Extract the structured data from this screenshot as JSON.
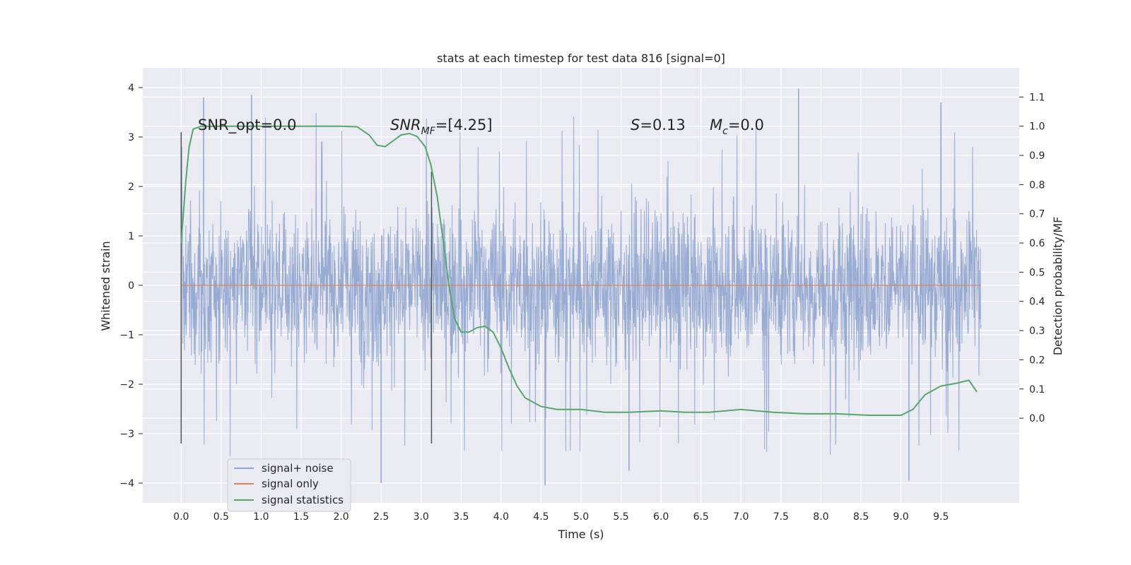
{
  "chart_data": {
    "type": "line",
    "title": "stats at each timestep for test data 816 [signal=0]",
    "xlabel": "Time (s)",
    "ylabel": "Whitened strain",
    "y2label": "Detection probability/MF",
    "xlim": [
      -0.48,
      10.48
    ],
    "ylim": [
      -4.4,
      4.4
    ],
    "y2lim": [
      -0.29,
      1.2
    ],
    "x_ticks": [
      0.0,
      0.5,
      1.0,
      1.5,
      2.0,
      2.5,
      3.0,
      3.5,
      4.0,
      4.5,
      5.0,
      5.5,
      6.0,
      6.5,
      7.0,
      7.5,
      8.0,
      8.5,
      9.0,
      9.5
    ],
    "x_tick_labels": [
      "0.0",
      "0.5",
      "1.0",
      "1.5",
      "2.0",
      "2.5",
      "3.0",
      "3.5",
      "4.0",
      "4.5",
      "5.0",
      "5.5",
      "6.0",
      "6.5",
      "7.0",
      "7.5",
      "8.0",
      "8.5",
      "9.0",
      "9.5"
    ],
    "y_ticks": [
      -4,
      -3,
      -2,
      -1,
      0,
      1,
      2,
      3,
      4
    ],
    "y_tick_labels": [
      "−4",
      "−3",
      "−2",
      "−1",
      "0",
      "1",
      "2",
      "3",
      "4"
    ],
    "y2_ticks": [
      0.0,
      0.1,
      0.2,
      0.3,
      0.4,
      0.5,
      0.6,
      0.7,
      0.8,
      0.9,
      1.0,
      1.1
    ],
    "y2_tick_labels": [
      "0.0",
      "0.1",
      "0.2",
      "0.3",
      "0.4",
      "0.5",
      "0.6",
      "0.7",
      "0.8",
      "0.9",
      "1.0",
      "1.1"
    ],
    "grid": true,
    "legend_position": "lower-left",
    "colors": {
      "plot_bg": "#eaeaf2",
      "grid": "#ffffff",
      "noise": "#8fa4cf",
      "signal": "#dd8452",
      "stat": "#55a868",
      "marker_line": "#555555"
    },
    "annotations": {
      "snr_opt": "SNR_opt=0.0",
      "snr_mf_main": "SNR",
      "snr_mf_sub": "MF",
      "snr_mf_value": "=[4.25]",
      "s_main": "S",
      "s_value": "=0.13",
      "mc_main": "M",
      "mc_sub": "c",
      "mc_value": "=0.0"
    },
    "series": [
      {
        "name": "signal+ noise",
        "axis": "left",
        "x_range": [
          0.0,
          10.0
        ],
        "envelope": {
          "typical_abs": 1.3,
          "peak_max": 4.0,
          "peak_min": -4.3,
          "notable_peaks": [
            [
              0.28,
              3.8
            ],
            [
              0.88,
              3.85
            ],
            [
              7.72,
              3.98
            ],
            [
              9.5,
              3.7
            ],
            [
              4.55,
              -4.05
            ],
            [
              2.5,
              -4.0
            ],
            [
              9.1,
              -3.95
            ],
            [
              5.6,
              -3.75
            ]
          ]
        }
      },
      {
        "name": "signal only",
        "axis": "left",
        "x": [
          0.0,
          10.0
        ],
        "y": [
          0.0,
          0.0
        ]
      },
      {
        "name": "signal statistics",
        "axis": "right",
        "x": [
          0.0,
          0.06,
          0.1,
          0.15,
          0.25,
          0.4,
          1.0,
          1.5,
          2.0,
          2.2,
          2.35,
          2.45,
          2.55,
          2.65,
          2.75,
          2.85,
          2.95,
          3.05,
          3.12,
          3.2,
          3.28,
          3.35,
          3.42,
          3.5,
          3.6,
          3.7,
          3.8,
          3.9,
          4.0,
          4.1,
          4.2,
          4.3,
          4.5,
          4.7,
          5.0,
          5.3,
          5.6,
          6.0,
          6.3,
          6.6,
          7.0,
          7.4,
          7.8,
          8.2,
          8.6,
          9.0,
          9.15,
          9.3,
          9.5,
          9.7,
          9.85,
          9.95
        ],
        "y": [
          0.6,
          0.82,
          0.93,
          0.99,
          1.0,
          1.0,
          1.0,
          1.0,
          1.0,
          0.998,
          0.97,
          0.935,
          0.93,
          0.95,
          0.97,
          0.975,
          0.965,
          0.93,
          0.87,
          0.76,
          0.6,
          0.45,
          0.34,
          0.295,
          0.295,
          0.31,
          0.315,
          0.295,
          0.24,
          0.17,
          0.11,
          0.07,
          0.04,
          0.03,
          0.03,
          0.02,
          0.02,
          0.025,
          0.02,
          0.02,
          0.03,
          0.02,
          0.015,
          0.015,
          0.01,
          0.01,
          0.03,
          0.08,
          0.11,
          0.12,
          0.13,
          0.09
        ]
      }
    ],
    "vertical_markers": [
      {
        "x": 0.0,
        "y_from": -3.2,
        "y_to": 3.1
      },
      {
        "x": 3.13,
        "y_from": -3.2,
        "y_to": 2.3
      }
    ],
    "legend": [
      "signal+ noise",
      "signal only",
      "signal statistics"
    ]
  }
}
